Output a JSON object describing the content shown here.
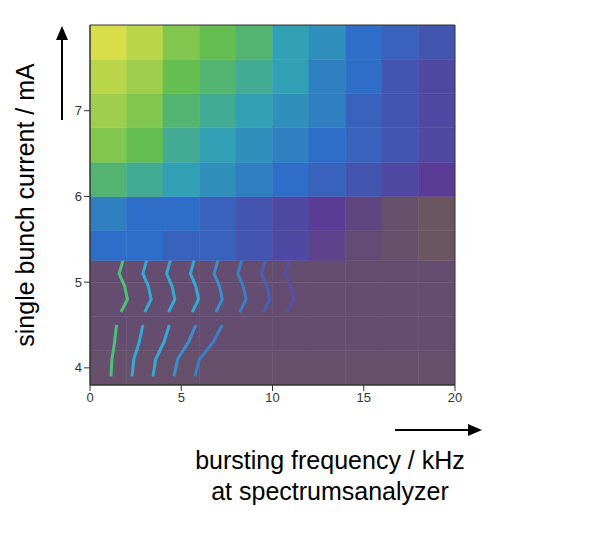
{
  "chart_data": {
    "type": "heatmap",
    "x_label": [
      "bursting frequency / kHz",
      "at spectrumsanalyzer"
    ],
    "y_label": "single bunch current / mA",
    "xlim": [
      0,
      20
    ],
    "xticks": [
      0,
      5,
      10,
      15,
      20
    ],
    "ylim": [
      3.8,
      8.0
    ],
    "yticks": [
      4,
      5,
      6,
      7
    ],
    "grid": false,
    "x_bins": [
      0,
      2,
      4,
      6,
      8,
      10,
      12,
      14,
      16,
      18,
      20
    ],
    "y_bins": [
      3.8,
      4.2,
      4.6,
      5.0,
      5.25,
      5.6,
      6.0,
      6.4,
      6.8,
      7.2,
      7.6,
      8.0
    ],
    "cells": [
      [
        0.05,
        0.05,
        0.05,
        0.05,
        0.05,
        0.05,
        0.05,
        0.05,
        0.05,
        0.05
      ],
      [
        0.08,
        0.08,
        0.08,
        0.08,
        0.08,
        0.08,
        0.08,
        0.08,
        0.08,
        0.08
      ],
      [
        0.08,
        0.08,
        0.08,
        0.08,
        0.08,
        0.08,
        0.08,
        0.08,
        0.08,
        0.08
      ],
      [
        0.08,
        0.08,
        0.08,
        0.08,
        0.08,
        0.08,
        0.08,
        0.08,
        0.08,
        0.08
      ],
      [
        0.45,
        0.45,
        0.4,
        0.4,
        0.35,
        0.3,
        0.2,
        0.1,
        0.05,
        0
      ],
      [
        0.5,
        0.45,
        0.45,
        0.4,
        0.35,
        0.3,
        0.25,
        0.15,
        0.05,
        0
      ],
      [
        0.7,
        0.65,
        0.6,
        0.55,
        0.5,
        0.45,
        0.4,
        0.35,
        0.3,
        0.25
      ],
      [
        0.8,
        0.75,
        0.65,
        0.6,
        0.55,
        0.5,
        0.45,
        0.4,
        0.35,
        0.3
      ],
      [
        0.85,
        0.8,
        0.7,
        0.65,
        0.6,
        0.55,
        0.5,
        0.4,
        0.35,
        0.3
      ],
      [
        0.9,
        0.85,
        0.75,
        0.7,
        0.65,
        0.6,
        0.5,
        0.45,
        0.35,
        0.3
      ],
      [
        0.95,
        0.9,
        0.8,
        0.75,
        0.7,
        0.6,
        0.55,
        0.45,
        0.4,
        0.35
      ]
    ],
    "traces": [
      {
        "color": "#4fc07a",
        "x": [
          1.15,
          1.2,
          1.35,
          1.45
        ],
        "y": [
          3.9,
          4.1,
          4.3,
          4.5
        ]
      },
      {
        "color": "#34a9d4",
        "x": [
          2.3,
          2.4,
          2.7,
          2.9
        ],
        "y": [
          3.9,
          4.1,
          4.3,
          4.5
        ]
      },
      {
        "color": "#34a9d4",
        "x": [
          3.45,
          3.6,
          4.05,
          4.35
        ],
        "y": [
          3.9,
          4.1,
          4.3,
          4.5
        ]
      },
      {
        "color": "#3a8fd0",
        "x": [
          4.6,
          4.8,
          5.4,
          5.8
        ],
        "y": [
          3.9,
          4.1,
          4.3,
          4.5
        ]
      },
      {
        "color": "#3a7fc8",
        "x": [
          5.75,
          6.0,
          6.75,
          7.25
        ],
        "y": [
          3.9,
          4.1,
          4.3,
          4.5
        ]
      },
      {
        "color": "#4fc07a",
        "x": [
          1.7,
          2.05,
          1.9,
          1.6,
          1.8
        ],
        "y": [
          4.65,
          4.8,
          4.95,
          5.1,
          5.25
        ]
      },
      {
        "color": "#34a9d4",
        "x": [
          3.0,
          3.35,
          3.2,
          2.9,
          3.1
        ],
        "y": [
          4.65,
          4.8,
          4.95,
          5.1,
          5.25
        ]
      },
      {
        "color": "#34a9d4",
        "x": [
          4.3,
          4.65,
          4.5,
          4.2,
          4.4
        ],
        "y": [
          4.65,
          4.8,
          4.95,
          5.1,
          5.25
        ]
      },
      {
        "color": "#34a9d4",
        "x": [
          5.6,
          5.95,
          5.8,
          5.5,
          5.7
        ],
        "y": [
          4.65,
          4.8,
          4.95,
          5.1,
          5.25
        ]
      },
      {
        "color": "#3a8fd0",
        "x": [
          6.9,
          7.25,
          7.1,
          6.8,
          7.0
        ],
        "y": [
          4.65,
          4.8,
          4.95,
          5.1,
          5.25
        ]
      },
      {
        "color": "#3a7fc8",
        "x": [
          8.2,
          8.55,
          8.4,
          8.1,
          8.3
        ],
        "y": [
          4.65,
          4.8,
          4.95,
          5.1,
          5.25
        ]
      },
      {
        "color": "#4a5fb8",
        "x": [
          9.5,
          9.85,
          9.7,
          9.4,
          9.6
        ],
        "y": [
          4.65,
          4.8,
          4.95,
          5.1,
          5.25
        ]
      },
      {
        "color": "#5a4fa8",
        "x": [
          10.8,
          11.15,
          11.0,
          10.7,
          10.9
        ],
        "y": [
          4.65,
          4.8,
          4.95,
          5.1,
          5.25
        ]
      }
    ]
  }
}
